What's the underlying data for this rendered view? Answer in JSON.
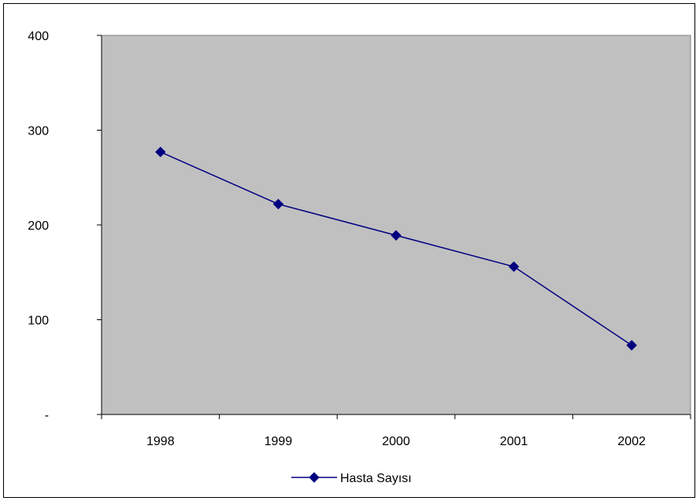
{
  "chart_data": {
    "type": "line",
    "title": "",
    "xlabel": "",
    "ylabel": "",
    "categories": [
      "1998",
      "1999",
      "2000",
      "2001",
      "2002"
    ],
    "series": [
      {
        "name": "Hasta Sayısı",
        "values": [
          277,
          222,
          189,
          156,
          73
        ],
        "color": "#000080"
      }
    ],
    "ylim": [
      0,
      400
    ],
    "y_ticks": [
      0,
      100,
      200,
      300,
      400
    ],
    "y_tick_labels": [
      "-",
      "100",
      "200",
      "300",
      "400"
    ],
    "grid": false,
    "plot_background": "#c0c0c0",
    "legend_position": "bottom",
    "marker": "diamond"
  }
}
